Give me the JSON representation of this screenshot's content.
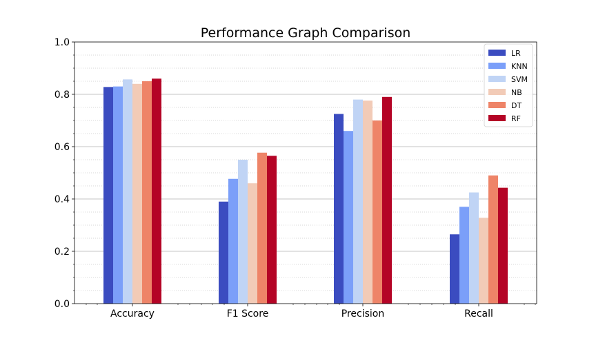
{
  "chart_data": {
    "type": "bar",
    "title": "Performance Graph Comparison",
    "xlabel": "",
    "ylabel": "",
    "categories": [
      "Accuracy",
      "F1 Score",
      "Precision",
      "Recall"
    ],
    "ylim": [
      0,
      1.0
    ],
    "yticks": [
      "0.0",
      "0.2",
      "0.4",
      "0.6",
      "0.8",
      "1.0"
    ],
    "ytick_values": [
      0,
      0.2,
      0.4,
      0.6,
      0.8,
      1.0
    ],
    "grid": {
      "major": true,
      "minor": true,
      "minor_step": 0.05
    },
    "legend_position": "top-right",
    "series": [
      {
        "name": "LR",
        "color": "#3b4cc0",
        "values": [
          0.828,
          0.39,
          0.725,
          0.265
        ]
      },
      {
        "name": "KNN",
        "color": "#7b9ff9",
        "values": [
          0.83,
          0.477,
          0.66,
          0.37
        ]
      },
      {
        "name": "SVM",
        "color": "#c0d4f5",
        "values": [
          0.857,
          0.55,
          0.78,
          0.425
        ]
      },
      {
        "name": "NB",
        "color": "#f2cbb7",
        "values": [
          0.84,
          0.46,
          0.776,
          0.328
        ]
      },
      {
        "name": "DT",
        "color": "#ee8468",
        "values": [
          0.85,
          0.577,
          0.7,
          0.49
        ]
      },
      {
        "name": "RF",
        "color": "#b40426",
        "values": [
          0.86,
          0.565,
          0.79,
          0.443
        ]
      }
    ]
  }
}
